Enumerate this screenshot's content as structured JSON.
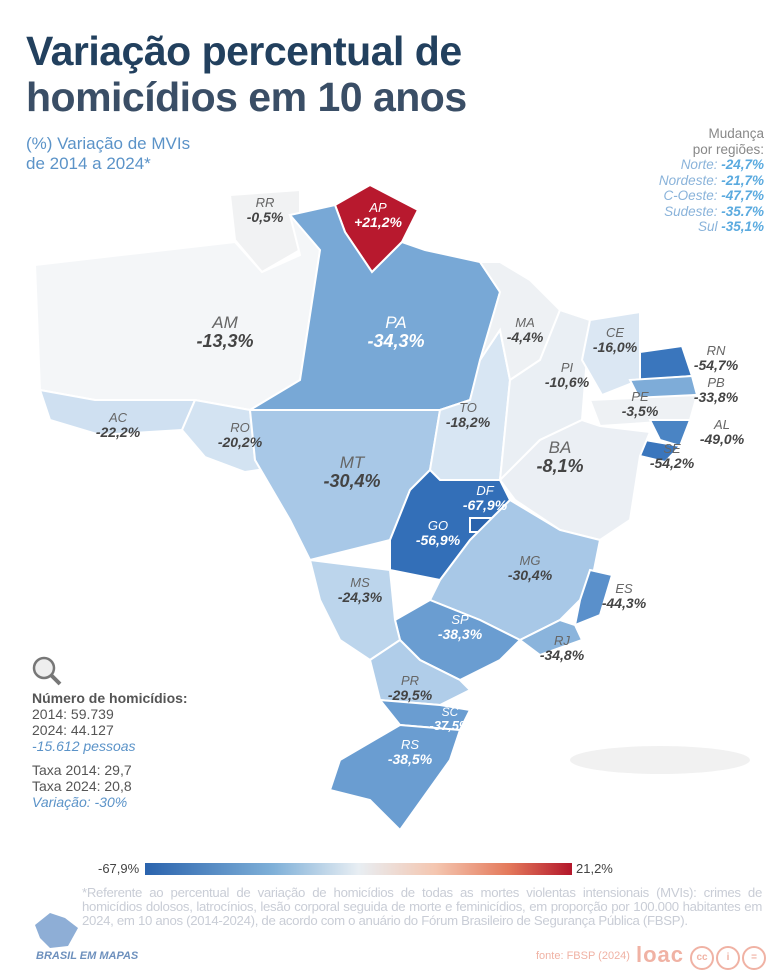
{
  "title": {
    "line1": "Variação percentual de",
    "line2": "homicídios em 10 anos"
  },
  "subtitle": {
    "line1": "(%) Variação de MVIs",
    "line2": "de 2014 a 2024*"
  },
  "regions": {
    "heading1": "Mudança",
    "heading2": "por regiões:",
    "items": [
      {
        "name": "Norte:",
        "value": "-24,7%"
      },
      {
        "name": "Nordeste:",
        "value": "-21,7%"
      },
      {
        "name": "C-Oeste:",
        "value": "-47,7%"
      },
      {
        "name": "Sudeste:",
        "value": "-35.7%"
      },
      {
        "name": "Sul",
        "value": "-35,1%"
      }
    ]
  },
  "states": [
    {
      "code": "RR",
      "value": "-0,5%",
      "color": "#f1f2f3"
    },
    {
      "code": "AP",
      "value": "+21,2%",
      "color": "#b8192e"
    },
    {
      "code": "AM",
      "value": "-13,3%",
      "color": "#f4f6f8"
    },
    {
      "code": "PA",
      "value": "-34,3%",
      "color": "#78a8d6"
    },
    {
      "code": "AC",
      "value": "-22,2%",
      "color": "#cfe0f1"
    },
    {
      "code": "RO",
      "value": "-20,2%",
      "color": "#d3e3f2"
    },
    {
      "code": "MT",
      "value": "-30,4%",
      "color": "#a8c8e7"
    },
    {
      "code": "TO",
      "value": "-18,2%",
      "color": "#d8e6f3"
    },
    {
      "code": "MA",
      "value": "-4,4%",
      "color": "#eef1f4"
    },
    {
      "code": "PI",
      "value": "-10,6%",
      "color": "#eaeff4"
    },
    {
      "code": "CE",
      "value": "-16,0%",
      "color": "#dbe7f3"
    },
    {
      "code": "RN",
      "value": "-54,7%",
      "color": "#3a76bd"
    },
    {
      "code": "PB",
      "value": "-33,8%",
      "color": "#7eacd8"
    },
    {
      "code": "PE",
      "value": "-3,5%",
      "color": "#eef1f4"
    },
    {
      "code": "AL",
      "value": "-49,0%",
      "color": "#4a84c4"
    },
    {
      "code": "SE",
      "value": "-54,2%",
      "color": "#3a76bd"
    },
    {
      "code": "BA",
      "value": "-8,1%",
      "color": "#ebeff4"
    },
    {
      "code": "GO",
      "value": "-56,9%",
      "color": "#336fb8"
    },
    {
      "code": "DF",
      "value": "-67,9%",
      "color": "#2a63ad"
    },
    {
      "code": "MG",
      "value": "-30,4%",
      "color": "#a8c8e7"
    },
    {
      "code": "ES",
      "value": "-44,3%",
      "color": "#5a90cb"
    },
    {
      "code": "RJ",
      "value": "-34,8%",
      "color": "#8ab4dc"
    },
    {
      "code": "SP",
      "value": "-38,3%",
      "color": "#6a9dd1"
    },
    {
      "code": "MS",
      "value": "-24,3%",
      "color": "#bcd5ec"
    },
    {
      "code": "PR",
      "value": "-29,5%",
      "color": "#b0cde9"
    },
    {
      "code": "SC",
      "value": "-37,5%",
      "color": "#6a9dd1"
    },
    {
      "code": "RS",
      "value": "-38,5%",
      "color": "#6a9dd1"
    }
  ],
  "stats": {
    "heading": "Número de homicídios:",
    "y2014": "2014: 59.739",
    "y2024": "2024: 44.127",
    "diff": "-15.612 pessoas",
    "rate2014": "Taxa 2014: 29,7",
    "rate2024": "Taxa 2024: 20,8",
    "variation": "Variação: -30%"
  },
  "scale": {
    "min": "-67,9%",
    "max": "21,2%"
  },
  "footnote": "*Referente ao percentual de variação de homicídios de todas as mortes violentas intensionais (MVIs): crimes de homicídios dolosos, latrocínios, lesão corporal seguida de morte e feminicídios, em proporção por 100.000 habitantes em 2024, em 10 anos (2014-2024), de acordo com o anuário do Fórum Brasileiro de Segurança Pública (FBSP).",
  "brand": "BRASIL EM MAPAS",
  "source": "fonte: FBSP (2024)",
  "loac": "loac",
  "license": [
    "cc",
    "i",
    "="
  ]
}
